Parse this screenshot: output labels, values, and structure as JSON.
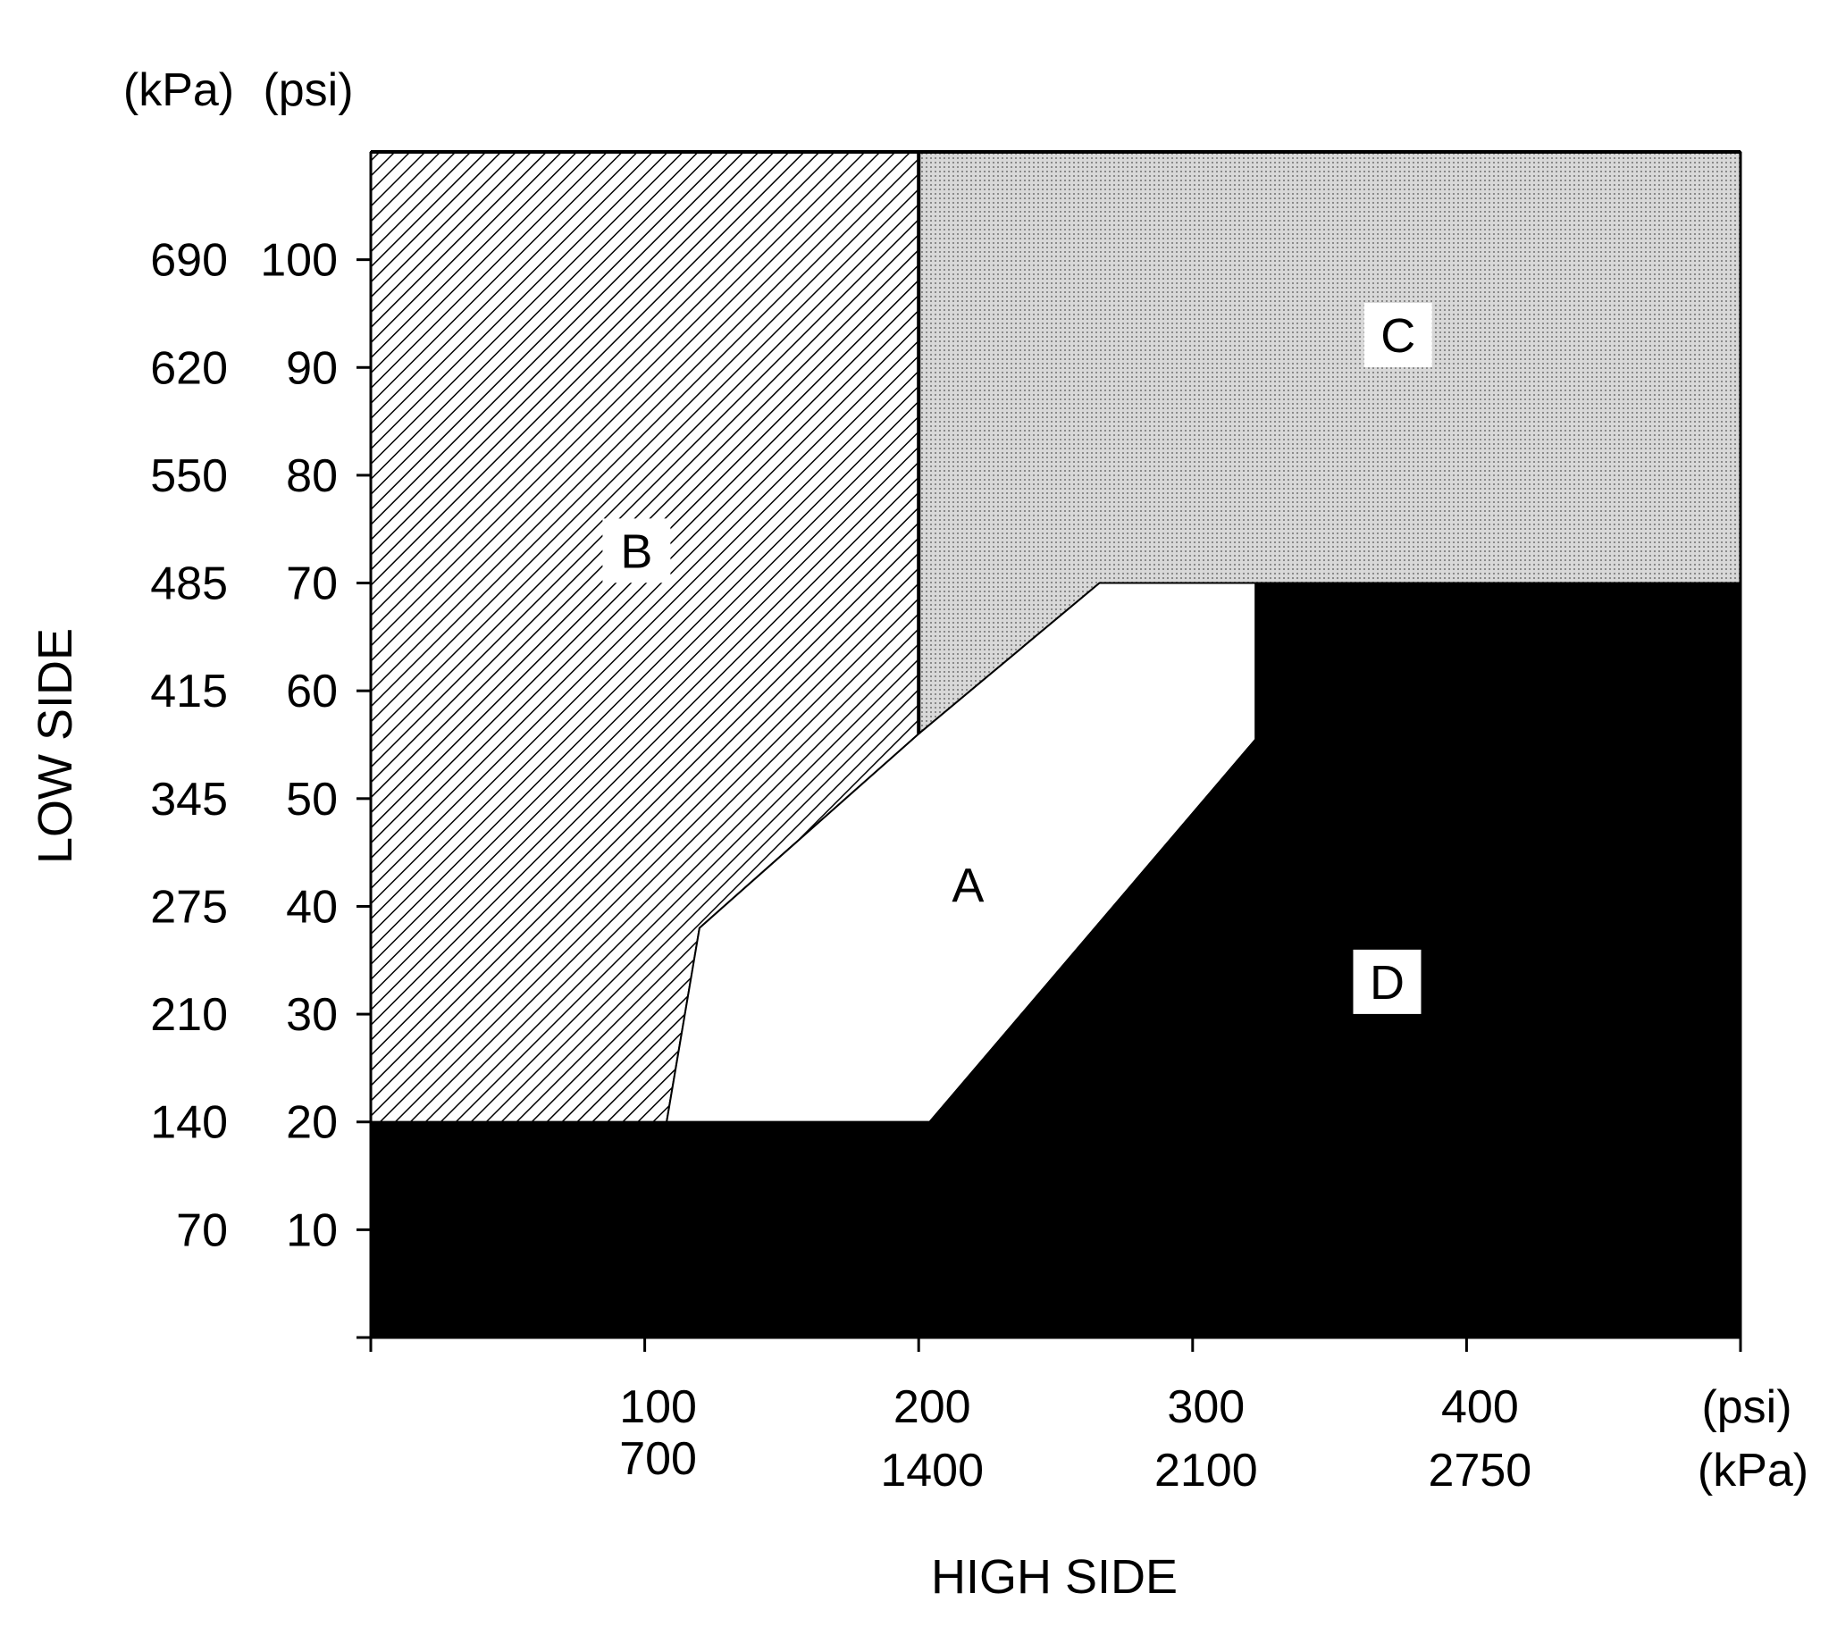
{
  "chart_data": {
    "type": "region-map",
    "x_axis": {
      "title": "HIGH SIDE",
      "range_psi": [
        0,
        500
      ],
      "ticks_psi": [
        0,
        100,
        200,
        300,
        400,
        500
      ],
      "tick_labels": [
        {
          "psi": 100,
          "label_psi": "100",
          "label_kpa": "700"
        },
        {
          "psi": 200,
          "label_psi": "200",
          "label_kpa": "1400"
        },
        {
          "psi": 300,
          "label_psi": "300",
          "label_kpa": "2100"
        },
        {
          "psi": 400,
          "label_psi": "400",
          "label_kpa": "2750"
        }
      ],
      "unit_psi": "(psi)",
      "unit_kpa": "(kPa)"
    },
    "y_axis": {
      "title": "LOW SIDE",
      "range_psi": [
        0,
        110
      ],
      "ticks_psi": [
        0,
        10,
        20,
        30,
        40,
        50,
        60,
        70,
        80,
        90,
        100
      ],
      "tick_labels": [
        {
          "psi": 100,
          "label_psi": "100",
          "label_kpa": "690"
        },
        {
          "psi": 90,
          "label_psi": "90",
          "label_kpa": "620"
        },
        {
          "psi": 80,
          "label_psi": "80",
          "label_kpa": "550"
        },
        {
          "psi": 70,
          "label_psi": "70",
          "label_kpa": "485"
        },
        {
          "psi": 60,
          "label_psi": "60",
          "label_kpa": "415"
        },
        {
          "psi": 50,
          "label_psi": "50",
          "label_kpa": "345"
        },
        {
          "psi": 40,
          "label_psi": "40",
          "label_kpa": "275"
        },
        {
          "psi": 30,
          "label_psi": "30",
          "label_kpa": "210"
        },
        {
          "psi": 20,
          "label_psi": "20",
          "label_kpa": "140"
        },
        {
          "psi": 10,
          "label_psi": "10",
          "label_kpa": "70"
        }
      ],
      "unit_kpa": "(kPa)",
      "unit_psi": "(psi)"
    },
    "regions": [
      {
        "id": "B",
        "label": "B",
        "fill": "hatch",
        "label_at": [
          97,
          73
        ],
        "polygon": [
          [
            0,
            110
          ],
          [
            200,
            110
          ],
          [
            200,
            56
          ],
          [
            120,
            38
          ],
          [
            108,
            20
          ],
          [
            0,
            20
          ]
        ]
      },
      {
        "id": "C",
        "label": "C",
        "fill": "dots",
        "label_at": [
          375,
          93
        ],
        "polygon": [
          [
            200,
            110
          ],
          [
            500,
            110
          ],
          [
            500,
            70
          ],
          [
            266,
            70
          ],
          [
            200,
            56
          ]
        ]
      },
      {
        "id": "A",
        "label": "A",
        "fill": "white",
        "label_at": [
          218,
          42
        ],
        "polygon": [
          [
            120,
            38
          ],
          [
            200,
            56
          ],
          [
            266,
            70
          ],
          [
            323,
            70
          ],
          [
            323,
            55.5
          ],
          [
            204,
            20
          ],
          [
            108,
            20
          ]
        ]
      },
      {
        "id": "D",
        "label": "D",
        "fill": "black",
        "label_at": [
          371,
          33
        ],
        "polygon": [
          [
            0,
            0
          ],
          [
            500,
            0
          ],
          [
            500,
            70
          ],
          [
            323,
            70
          ],
          [
            323,
            55.5
          ],
          [
            204,
            20
          ],
          [
            0,
            20
          ]
        ]
      }
    ],
    "colors": {
      "ink": "#000000",
      "paper": "#ffffff",
      "dots": "#a0a0a0",
      "dots_bg": "#d6d6d6"
    }
  }
}
